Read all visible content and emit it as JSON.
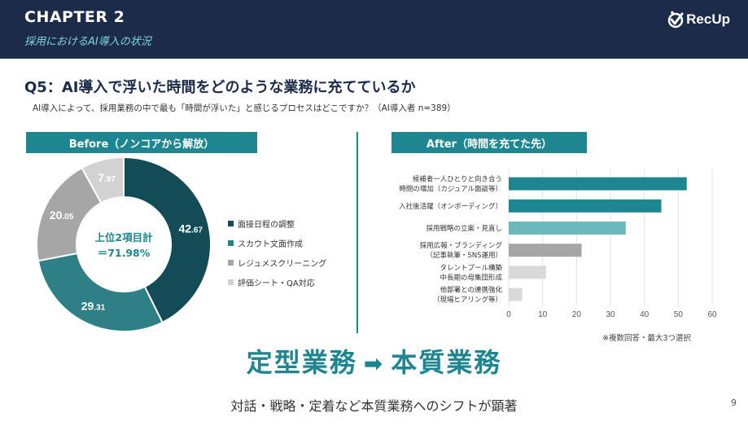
{
  "header": {
    "chapter": "CHAPTER 2",
    "subtitle": "採用におけるAI導入の状況",
    "logo_text": "RecUp",
    "background": "#1c2b4a"
  },
  "question": {
    "title": "Q5：AI導入で浮いた時間をどのような業務に充てているか",
    "subtitle": "AI導入によって、採用業務の中で最も「時間が浮いた」と感じるプロセスはどこですか？（AI導入者 n=389）"
  },
  "before_label": "Before（ノンコアから解放）",
  "after_label": "After（時間を充てた先）",
  "note": "※複数回答・最大3つ選択",
  "bottom": {
    "from": "定型業務",
    "arrow": "➡",
    "to": "本質業務",
    "tagline": "対話・戦略・定着など本質業務へのシフトが顕著"
  },
  "page_number": "9",
  "accent": "#1e8690",
  "chart_data": [
    {
      "type": "pie",
      "donut": true,
      "center_text": [
        "上位2項目計",
        "＝71.98%"
      ],
      "slices": [
        {
          "label": "面接日程の調整",
          "value": 42.67,
          "value_int": "42",
          "value_dec": ".67",
          "color": "#134b56"
        },
        {
          "label": "スカウト文面作成",
          "value": 29.31,
          "value_int": "29",
          "value_dec": ".31",
          "color": "#2e7f86"
        },
        {
          "label": "レジュメスクリーニング",
          "value": 20.05,
          "value_int": "20",
          "value_dec": ".05",
          "color": "#a6a6a6"
        },
        {
          "label": "評価シート・QA対応",
          "value": 7.97,
          "value_int": "7",
          "value_dec": ".97",
          "color": "#d2d2d2"
        }
      ],
      "legend_position": "right"
    },
    {
      "type": "bar",
      "orientation": "horizontal",
      "categories": [
        [
          "候補者一人ひとりと向き合う",
          "時間の増加（カジュアル面談等）"
        ],
        [
          "入社後活躍（オンボーディング）"
        ],
        [
          "採用戦略の立案・見直し"
        ],
        [
          "採用広報・ブランディング",
          "（記事執筆・SNS運用）"
        ],
        [
          "タレントプール構築",
          "中長期の母集団形成"
        ],
        [
          "他部署との連携強化",
          "（現場ヒアリング等）"
        ]
      ],
      "values": [
        52.5,
        45,
        34.5,
        21.5,
        11,
        4
      ],
      "colors": [
        "#1e8690",
        "#1e8690",
        "#6bb8bd",
        "#a6a6a6",
        "#d9d9d9",
        "#d9d9d9"
      ],
      "xlim": [
        0,
        60
      ],
      "xticks": [
        "0",
        "10",
        "20",
        "30",
        "40",
        "50",
        "60"
      ],
      "grid": true
    }
  ]
}
